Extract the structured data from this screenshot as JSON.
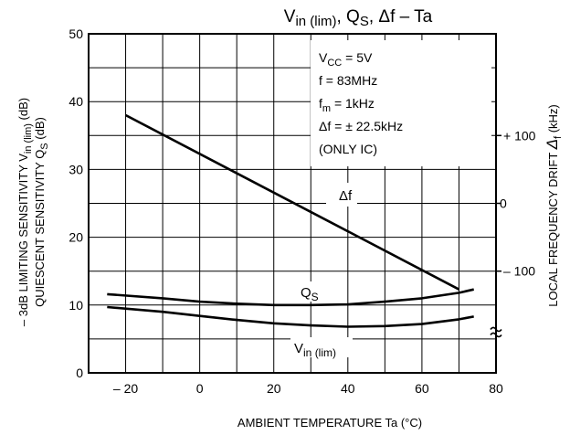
{
  "chart_data": {
    "type": "line",
    "title_parts": {
      "a": "V",
      "a_sub": "in (lim)",
      "b": ", Q",
      "b_sub": "S",
      "c": ", Δf  –  Ta"
    },
    "xlabel": "AMBIENT TEMPERATURE    Ta    (°C)",
    "ylabel_left": {
      "line1": "– 3dB LIMITING SENSITIVITY   V",
      "line1_sub": "in (lim)",
      "line1_unit": "(dB)",
      "line2": "QUIESCENT SENSITIVITY   Q",
      "line2_sub": "S",
      "line2_unit": "(dB)"
    },
    "ylabel_right": {
      "text": "LOCAL FREQUENCY DRIFT  ",
      "sym": "Δ",
      "sym_sub": "f",
      "unit": "(kHz)"
    },
    "xlim": [
      -30,
      80
    ],
    "ylim": [
      0,
      50
    ],
    "x_ticks": [
      -20,
      0,
      20,
      40,
      60,
      80
    ],
    "x_tick_labels": [
      "– 20",
      "0",
      "20",
      "40",
      "60",
      "80"
    ],
    "y_ticks": [
      0,
      10,
      20,
      30,
      40,
      50
    ],
    "y_tick_labels": [
      "0",
      "10",
      "20",
      "30",
      "40",
      "50"
    ],
    "right_ticks": [
      {
        "label": "+ 100",
        "y": 35
      },
      {
        "label": "0",
        "y": 25
      },
      {
        "label": "– 100",
        "y": 15
      }
    ],
    "right_break_y": 6,
    "grid": true,
    "conditions": [
      {
        "main": "V",
        "sub": "CC",
        "rest": " = 5V"
      },
      {
        "main": "f = 83MHz",
        "sub": "",
        "rest": ""
      },
      {
        "main": "f",
        "sub": "m",
        "rest": " = 1kHz"
      },
      {
        "main": "Δf = ± 22.5kHz",
        "sub": "",
        "rest": ""
      },
      {
        "main": "(ONLY  IC)",
        "sub": "",
        "rest": ""
      }
    ],
    "series": [
      {
        "name": "Δf",
        "label_main": "Δf",
        "label_sub": "",
        "x": [
          -20,
          70
        ],
        "y": [
          38,
          12.3
        ]
      },
      {
        "name": "QS",
        "label_main": "Q",
        "label_sub": "S",
        "x": [
          -25,
          -10,
          0,
          10,
          20,
          30,
          40,
          50,
          60,
          70,
          74
        ],
        "y": [
          11.6,
          11.0,
          10.5,
          10.2,
          10.0,
          10.0,
          10.1,
          10.5,
          11.0,
          11.8,
          12.3
        ]
      },
      {
        "name": "Vin (lim)",
        "label_main": "V",
        "label_sub": "in (lim)",
        "x": [
          -25,
          -10,
          0,
          10,
          20,
          30,
          40,
          50,
          60,
          70,
          74
        ],
        "y": [
          9.7,
          9.0,
          8.4,
          7.8,
          7.3,
          7.0,
          6.8,
          6.9,
          7.2,
          7.9,
          8.3
        ]
      }
    ]
  }
}
